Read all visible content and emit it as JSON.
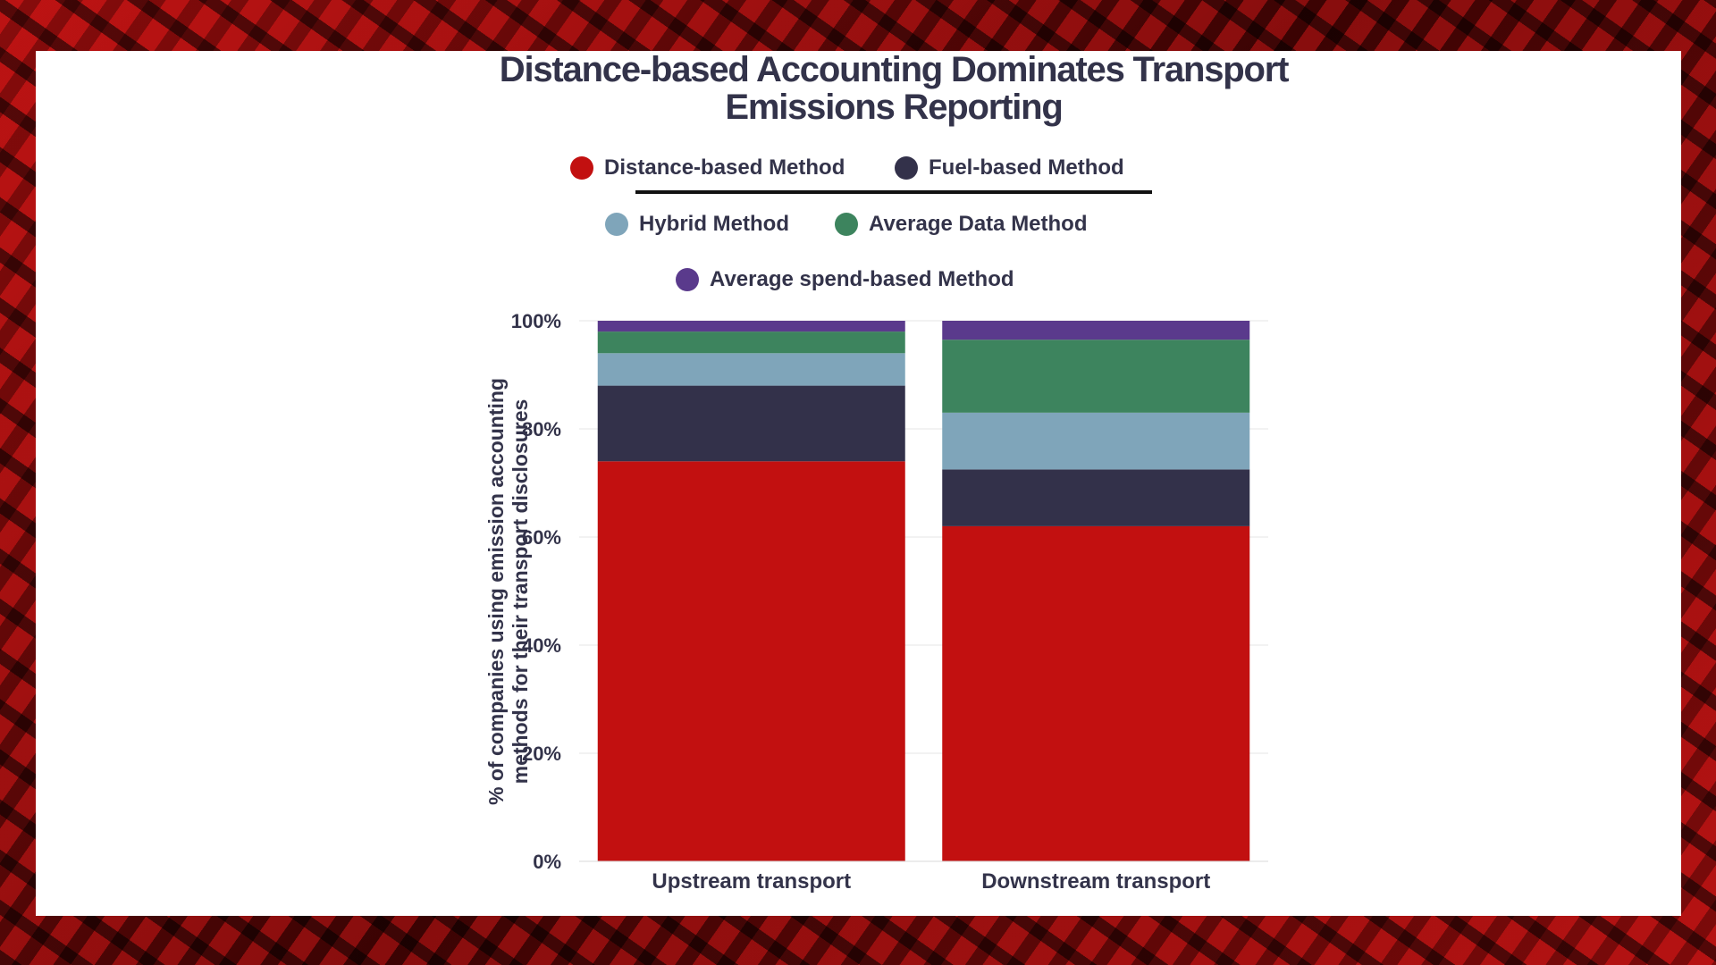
{
  "chart_data": {
    "type": "bar",
    "stacked": true,
    "title": "Distance-based Accounting Dominates Transport Emissions Reporting",
    "ylabel": "% of companies using emission accounting methods for their transport disclosures",
    "xlabel": "",
    "ylim": [
      0,
      100
    ],
    "yticks": [
      "0%",
      "20%",
      "40%",
      "60%",
      "80%",
      "100%"
    ],
    "categories": [
      "Upstream transport",
      "Downstream transport"
    ],
    "series": [
      {
        "name": "Distance-based Method",
        "color": "#c21010",
        "values": [
          74,
          62
        ]
      },
      {
        "name": "Fuel-based Method",
        "color": "#33314a",
        "values": [
          14,
          10.5
        ]
      },
      {
        "name": "Hybrid Method",
        "color": "#7fa5ba",
        "values": [
          6,
          10.5
        ]
      },
      {
        "name": "Average Data Method",
        "color": "#3d845e",
        "values": [
          4,
          13.5
        ]
      },
      {
        "name": "Average spend-based Method",
        "color": "#5a3a8c",
        "values": [
          2,
          3.5
        ]
      }
    ],
    "legend": "top-center",
    "grid": true
  }
}
